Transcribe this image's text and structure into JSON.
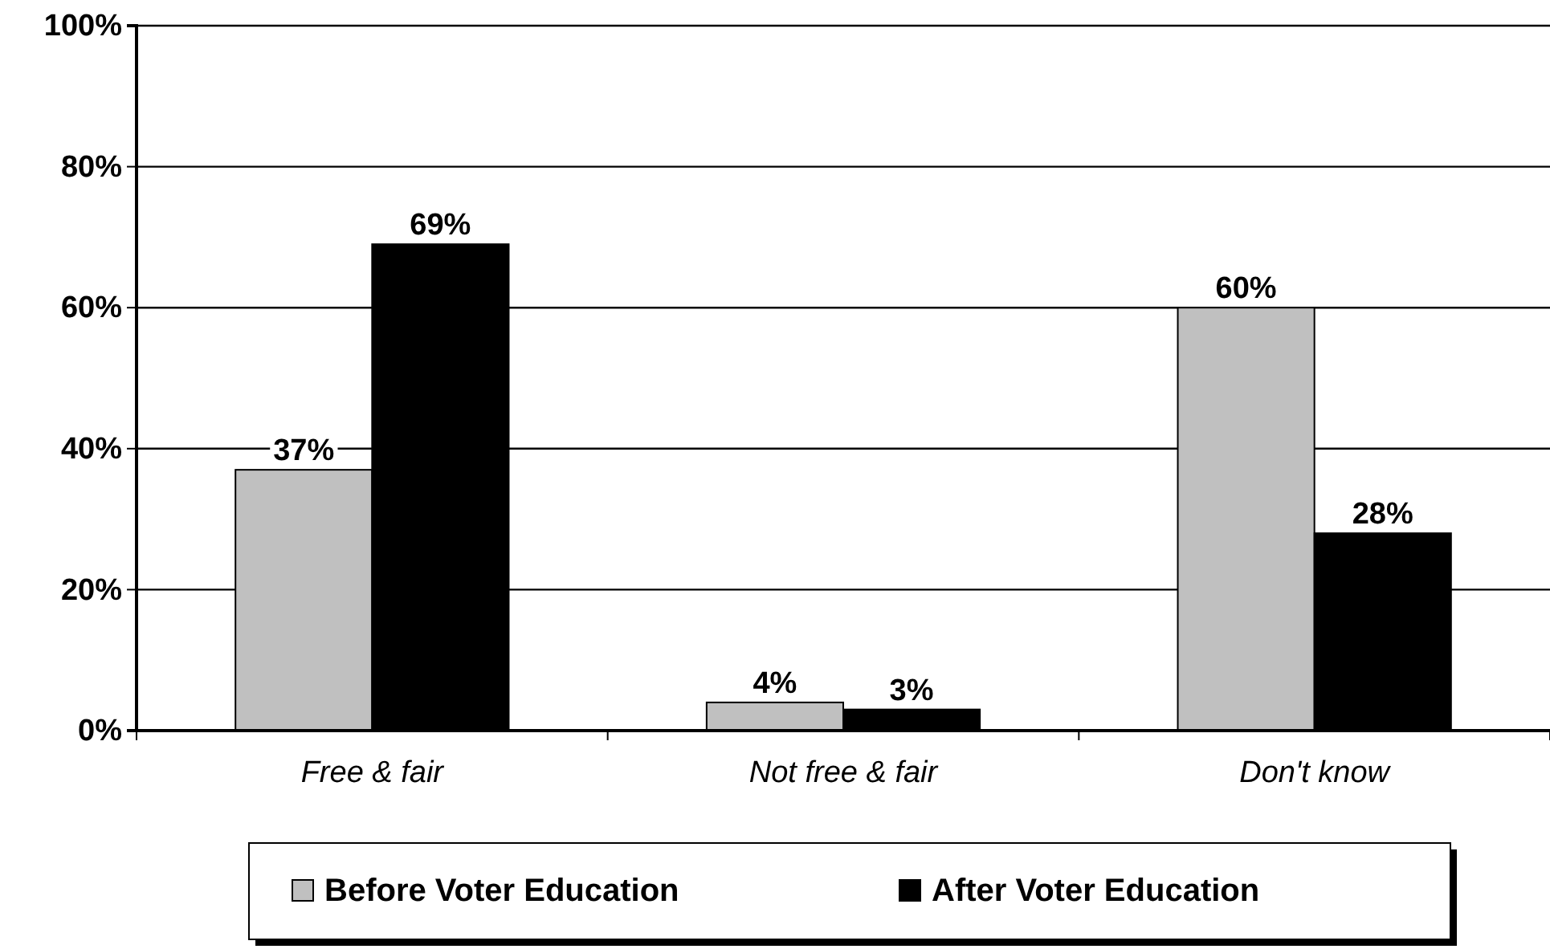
{
  "chart_data": {
    "type": "bar",
    "categories": [
      "Free & fair",
      "Not free & fair",
      "Don't know"
    ],
    "series": [
      {
        "name": "Before Voter Education",
        "color": "#c0c0c0",
        "values": [
          37,
          4,
          60
        ],
        "value_labels": [
          "37%",
          "4%",
          "60%"
        ]
      },
      {
        "name": "After Voter Education",
        "color": "#000000",
        "values": [
          69,
          3,
          28
        ],
        "value_labels": [
          "69%",
          "3%",
          "28%"
        ]
      }
    ],
    "ylim": [
      0,
      100
    ],
    "yticks": [
      {
        "value": 0,
        "label": "0%"
      },
      {
        "value": 20,
        "label": "20%"
      },
      {
        "value": 40,
        "label": "40%"
      },
      {
        "value": 60,
        "label": "60%"
      },
      {
        "value": 80,
        "label": "80%"
      },
      {
        "value": 100,
        "label": "100%"
      }
    ],
    "grid": "y",
    "legend": "bottom"
  }
}
